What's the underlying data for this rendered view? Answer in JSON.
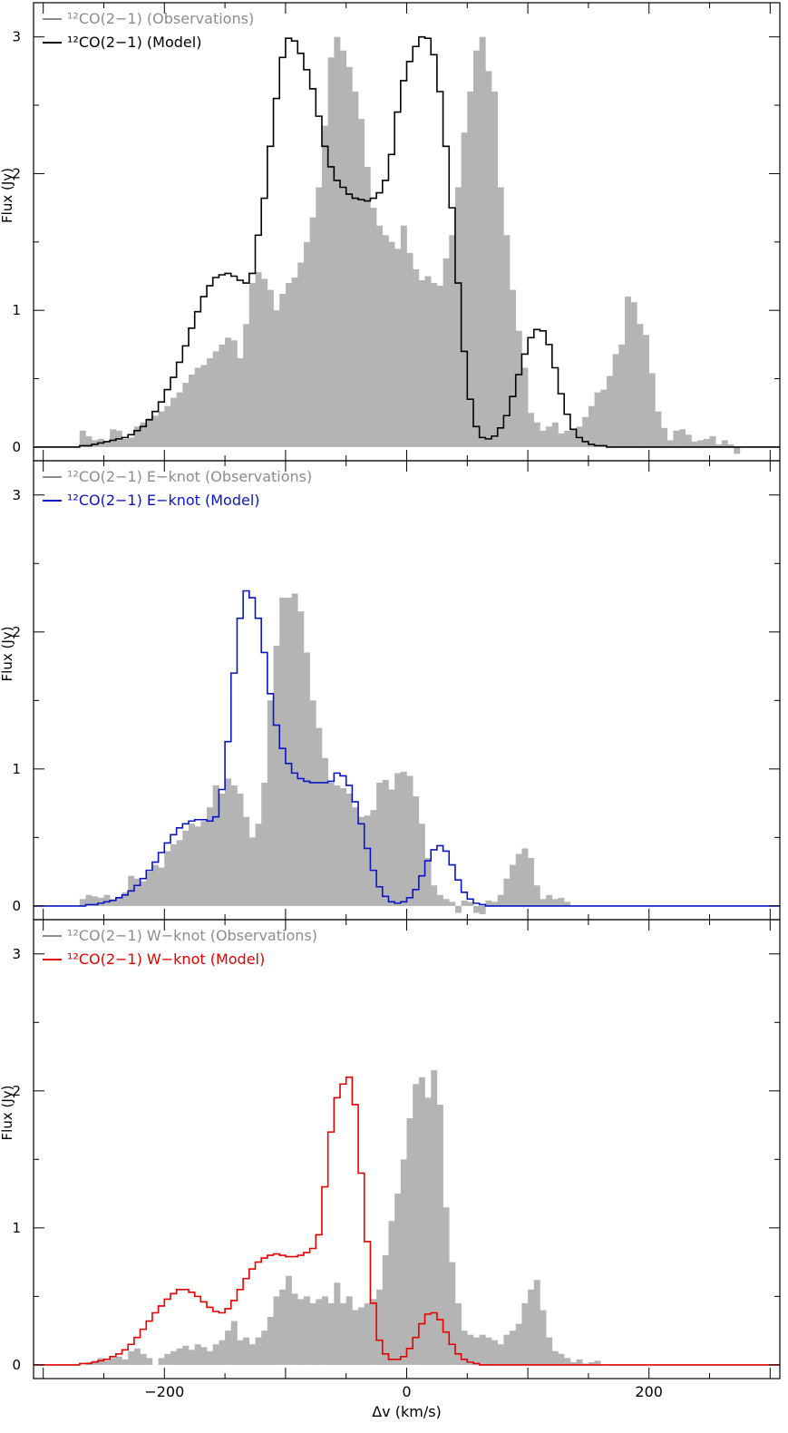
{
  "colors": {
    "observations_fill": "#b4b4b4",
    "observations_legend": "#8c8c8c",
    "frame": "#000000",
    "model_total": "#000000",
    "model_e_knot": "#0a14c8",
    "model_w_knot": "#e60000"
  },
  "chart_data": [
    {
      "type": "histogram-step",
      "panel": "top",
      "ylabel": "Flux (Jy)",
      "xlabel": "",
      "xlim": [
        -308,
        308
      ],
      "ylim": [
        -0.1,
        3.25
      ],
      "yticks": [
        0,
        1,
        2,
        3
      ],
      "xticks": [
        -200,
        0,
        200
      ],
      "bin_width": 5,
      "legend": {
        "position": "top-left",
        "observations": "¹²CO(2−1) (Observations)",
        "model": "¹²CO(2−1) (Model)"
      },
      "observations": {
        "x_start": -270,
        "values": [
          0.12,
          0.08,
          0.05,
          0.06,
          0.04,
          0.13,
          0.12,
          0.06,
          0.07,
          0.15,
          0.18,
          0.21,
          0.23,
          0.26,
          0.3,
          0.36,
          0.4,
          0.47,
          0.53,
          0.58,
          0.6,
          0.65,
          0.7,
          0.75,
          0.8,
          0.78,
          0.65,
          0.9,
          1.2,
          1.28,
          1.23,
          1.15,
          1.0,
          1.12,
          1.2,
          1.24,
          1.35,
          1.5,
          1.68,
          1.9,
          2.35,
          2.85,
          3.0,
          2.9,
          2.78,
          2.6,
          2.4,
          2.05,
          1.75,
          1.62,
          1.55,
          1.5,
          1.45,
          1.62,
          1.42,
          1.3,
          1.22,
          1.25,
          1.2,
          1.18,
          1.38,
          1.55,
          1.9,
          2.3,
          2.6,
          2.9,
          3.0,
          2.75,
          2.6,
          1.9,
          1.55,
          1.15,
          0.85,
          0.58,
          0.25,
          0.18,
          0.12,
          0.15,
          0.18,
          0.1,
          0.12,
          0.13,
          0.15,
          0.22,
          0.3,
          0.4,
          0.42,
          0.52,
          0.68,
          0.75,
          1.1,
          1.06,
          0.9,
          0.82,
          0.54,
          0.26,
          0.14,
          0.05,
          0.12,
          0.13,
          0.09,
          0.04,
          0.05,
          0.06,
          0.08,
          0.02,
          0.05,
          0.02,
          -0.05
        ]
      },
      "model": {
        "x_start": -310,
        "values": [
          0.0,
          0.0,
          0.0,
          0.0,
          0.0,
          0.0,
          0.0,
          0.0,
          0.01,
          0.01,
          0.02,
          0.03,
          0.04,
          0.05,
          0.06,
          0.07,
          0.09,
          0.12,
          0.15,
          0.2,
          0.26,
          0.33,
          0.42,
          0.51,
          0.62,
          0.74,
          0.87,
          0.99,
          1.1,
          1.18,
          1.24,
          1.26,
          1.27,
          1.25,
          1.22,
          1.2,
          1.27,
          1.55,
          1.82,
          2.2,
          2.55,
          2.85,
          2.99,
          2.97,
          2.88,
          2.76,
          2.62,
          2.42,
          2.2,
          2.05,
          1.95,
          1.9,
          1.85,
          1.82,
          1.81,
          1.8,
          1.82,
          1.86,
          1.95,
          2.14,
          2.45,
          2.68,
          2.82,
          2.93,
          3.0,
          2.99,
          2.87,
          2.6,
          2.2,
          1.75,
          1.2,
          0.7,
          0.35,
          0.15,
          0.07,
          0.06,
          0.08,
          0.14,
          0.23,
          0.37,
          0.53,
          0.68,
          0.8,
          0.86,
          0.85,
          0.75,
          0.58,
          0.39,
          0.24,
          0.13,
          0.07,
          0.04,
          0.02,
          0.01,
          0.01,
          0.0,
          0.0,
          0.0,
          0.0,
          0.0,
          0.0,
          0.0,
          0.0,
          0.0,
          0.0,
          0.0,
          0.0,
          0.0,
          0.0,
          0.0,
          0.0,
          0.0,
          0.0,
          0.0,
          0.0,
          0.0,
          0.0,
          0.0,
          0.0,
          0.0,
          0.0,
          0.0,
          0.0,
          0.0
        ]
      }
    },
    {
      "type": "histogram-step",
      "panel": "middle",
      "ylabel": "Flux (Jy)",
      "xlabel": "",
      "xlim": [
        -308,
        308
      ],
      "ylim": [
        -0.1,
        3.25
      ],
      "yticks": [
        0,
        1,
        2,
        3
      ],
      "xticks": [
        -200,
        0,
        200
      ],
      "bin_width": 5,
      "legend": {
        "position": "top-left",
        "observations": "¹²CO(2−1) E−knot (Observations)",
        "model": "¹²CO(2−1) E−knot (Model)"
      },
      "observations": {
        "x_start": -270,
        "values": [
          0.05,
          0.08,
          0.07,
          0.06,
          0.08,
          0.05,
          0.06,
          0.1,
          0.22,
          0.2,
          0.18,
          0.25,
          0.3,
          0.28,
          0.4,
          0.45,
          0.48,
          0.55,
          0.6,
          0.58,
          0.62,
          0.72,
          0.88,
          0.82,
          0.93,
          0.88,
          0.82,
          0.65,
          0.5,
          0.6,
          0.9,
          1.5,
          1.9,
          2.25,
          2.25,
          2.28,
          2.15,
          1.85,
          1.5,
          1.3,
          1.08,
          0.9,
          0.88,
          0.86,
          0.82,
          0.72,
          0.65,
          0.66,
          0.7,
          0.9,
          0.92,
          0.85,
          0.97,
          0.98,
          0.95,
          0.8,
          0.6,
          0.35,
          0.15,
          0.08,
          0.05,
          0.03,
          -0.05,
          0.04,
          0.03,
          -0.05,
          -0.06,
          0.04,
          0.03,
          0.08,
          0.2,
          0.3,
          0.38,
          0.42,
          0.35,
          0.15,
          0.05,
          0.08,
          0.05,
          0.06,
          0.03
        ]
      },
      "model": {
        "x_start": -310,
        "values": [
          0.0,
          0.0,
          0.0,
          0.0,
          0.0,
          0.0,
          0.0,
          0.0,
          0.0,
          0.01,
          0.01,
          0.02,
          0.03,
          0.04,
          0.06,
          0.08,
          0.11,
          0.15,
          0.2,
          0.26,
          0.32,
          0.39,
          0.46,
          0.52,
          0.57,
          0.6,
          0.62,
          0.63,
          0.63,
          0.62,
          0.65,
          0.85,
          1.2,
          1.7,
          2.1,
          2.3,
          2.25,
          2.1,
          1.85,
          1.55,
          1.32,
          1.15,
          1.04,
          0.97,
          0.93,
          0.91,
          0.9,
          0.9,
          0.9,
          0.91,
          0.97,
          0.95,
          0.88,
          0.76,
          0.6,
          0.42,
          0.26,
          0.14,
          0.07,
          0.03,
          0.02,
          0.03,
          0.06,
          0.12,
          0.22,
          0.33,
          0.41,
          0.44,
          0.4,
          0.3,
          0.19,
          0.1,
          0.05,
          0.02,
          0.01,
          0.0,
          0.0,
          0.0,
          0.0,
          0.0,
          0.0,
          0.0,
          0.0,
          0.0,
          0.0,
          0.0,
          0.0,
          0.0,
          0.0,
          0.0,
          0.0,
          0.0,
          0.0,
          0.0,
          0.0,
          0.0,
          0.0,
          0.0,
          0.0,
          0.0,
          0.0,
          0.0,
          0.0,
          0.0,
          0.0,
          0.0,
          0.0,
          0.0,
          0.0,
          0.0,
          0.0,
          0.0,
          0.0,
          0.0,
          0.0,
          0.0,
          0.0,
          0.0,
          0.0,
          0.0,
          0.0,
          0.0,
          0.0,
          0.0
        ]
      }
    },
    {
      "type": "histogram-step",
      "panel": "bottom",
      "ylabel": "Flux (Jy)",
      "xlabel": "Δv (km/s)",
      "xlim": [
        -308,
        308
      ],
      "ylim": [
        -0.1,
        3.25
      ],
      "yticks": [
        0,
        1,
        2,
        3
      ],
      "xticks": [
        -200,
        0,
        200
      ],
      "xtick_labels": [
        "−200",
        "0",
        "200"
      ],
      "bin_width": 5,
      "legend": {
        "position": "top-left",
        "observations": "¹²CO(2−1) W−knot (Observations)",
        "model": "¹²CO(2−1) W−knot (Model)"
      },
      "observations": {
        "x_start": -270,
        "values": [
          0.0,
          0.02,
          0.03,
          0.05,
          0.03,
          0.05,
          0.06,
          0.04,
          0.1,
          0.12,
          0.08,
          0.05,
          0.0,
          0.05,
          0.08,
          0.1,
          0.12,
          0.14,
          0.11,
          0.15,
          0.13,
          0.1,
          0.15,
          0.18,
          0.25,
          0.32,
          0.18,
          0.2,
          0.15,
          0.2,
          0.25,
          0.35,
          0.5,
          0.55,
          0.65,
          0.52,
          0.48,
          0.5,
          0.45,
          0.48,
          0.5,
          0.45,
          0.6,
          0.45,
          0.5,
          0.4,
          0.42,
          0.45,
          0.48,
          0.55,
          0.8,
          1.05,
          1.25,
          1.5,
          1.8,
          2.05,
          2.1,
          1.95,
          2.15,
          1.9,
          1.15,
          0.75,
          0.45,
          0.25,
          0.22,
          0.2,
          0.22,
          0.2,
          0.18,
          0.15,
          0.22,
          0.25,
          0.3,
          0.45,
          0.55,
          0.62,
          0.4,
          0.2,
          0.1,
          0.08,
          0.05,
          0.02,
          0.04,
          0.01,
          0.02,
          0.03,
          0.0
        ]
      },
      "model": {
        "x_start": -310,
        "values": [
          0.0,
          0.0,
          0.0,
          0.0,
          0.0,
          0.0,
          0.0,
          0.0,
          0.01,
          0.01,
          0.02,
          0.03,
          0.04,
          0.06,
          0.08,
          0.11,
          0.15,
          0.2,
          0.26,
          0.32,
          0.38,
          0.43,
          0.48,
          0.52,
          0.55,
          0.55,
          0.53,
          0.5,
          0.46,
          0.42,
          0.39,
          0.38,
          0.41,
          0.47,
          0.55,
          0.63,
          0.7,
          0.75,
          0.78,
          0.8,
          0.81,
          0.8,
          0.79,
          0.79,
          0.8,
          0.82,
          0.85,
          0.95,
          1.3,
          1.7,
          1.95,
          2.05,
          2.1,
          1.9,
          1.4,
          0.9,
          0.45,
          0.18,
          0.08,
          0.04,
          0.04,
          0.06,
          0.12,
          0.2,
          0.3,
          0.37,
          0.38,
          0.33,
          0.24,
          0.15,
          0.08,
          0.04,
          0.02,
          0.01,
          0.0,
          0.0,
          0.0,
          0.0,
          0.0,
          0.0,
          0.0,
          0.0,
          0.0,
          0.0,
          0.0,
          0.0,
          0.0,
          0.0,
          0.0,
          0.0,
          0.0,
          0.0,
          0.0,
          0.0,
          0.0,
          0.0,
          0.0,
          0.0,
          0.0,
          0.0,
          0.0,
          0.0,
          0.0,
          0.0,
          0.0,
          0.0,
          0.0,
          0.0,
          0.0,
          0.0,
          0.0,
          0.0,
          0.0,
          0.0,
          0.0,
          0.0,
          0.0,
          0.0,
          0.0,
          0.0,
          0.0,
          0.0,
          0.0,
          0.0
        ]
      }
    }
  ]
}
